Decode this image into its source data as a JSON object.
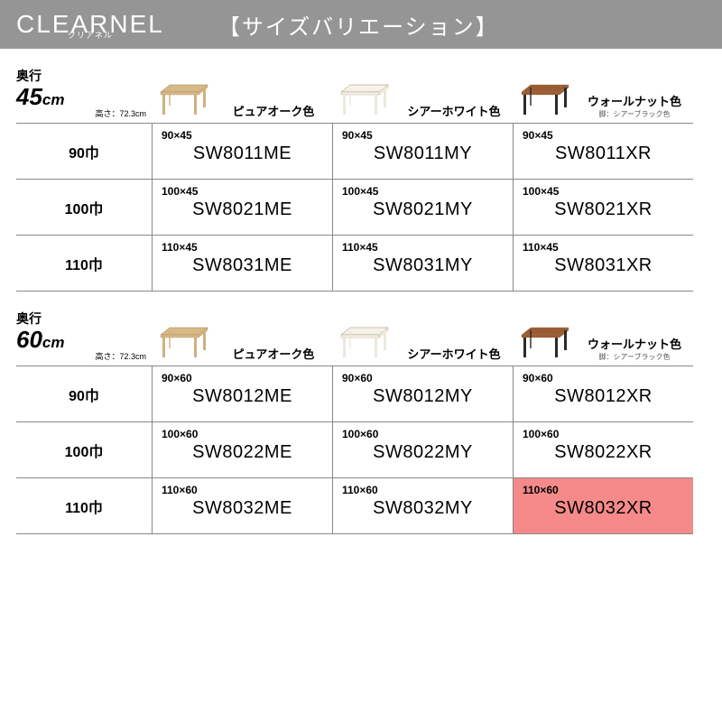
{
  "header": {
    "brand": "CLEARNEL",
    "brand_sub": "クリアネル",
    "title": "【サイズバリエーション】"
  },
  "colors": {
    "header_bg": "#959595",
    "highlight_bg": "#f68a8a",
    "oak_top": "#d8b988",
    "oak_leg": "#d0b080",
    "white_top": "#f5f2ec",
    "white_leg": "#ece8df",
    "walnut_top": "#9a5a34",
    "walnut_leg": "#2a2a2a"
  },
  "sections": [
    {
      "depth_label": "奥行",
      "depth_value": "45",
      "depth_unit": "cm",
      "height_note": "高さ：72.3cm",
      "color_headers": [
        {
          "name": "ピュアオーク色",
          "sub": "",
          "top": "#d8b988",
          "leg": "#d0b080"
        },
        {
          "name": "シアーホワイト色",
          "sub": "",
          "top": "#f5f2ec",
          "leg": "#ece8df"
        },
        {
          "name": "ウォールナット色",
          "sub": "脚：シアーブラック色",
          "top": "#9a5a34",
          "leg": "#2a2a2a"
        }
      ],
      "rows": [
        {
          "label": "90巾",
          "cells": [
            {
              "size": "90×45",
              "code": "SW8011ME"
            },
            {
              "size": "90×45",
              "code": "SW8011MY"
            },
            {
              "size": "90×45",
              "code": "SW8011XR"
            }
          ]
        },
        {
          "label": "100巾",
          "cells": [
            {
              "size": "100×45",
              "code": "SW8021ME"
            },
            {
              "size": "100×45",
              "code": "SW8021MY"
            },
            {
              "size": "100×45",
              "code": "SW8021XR"
            }
          ]
        },
        {
          "label": "110巾",
          "cells": [
            {
              "size": "110×45",
              "code": "SW8031ME"
            },
            {
              "size": "110×45",
              "code": "SW8031MY"
            },
            {
              "size": "110×45",
              "code": "SW8031XR"
            }
          ]
        }
      ]
    },
    {
      "depth_label": "奥行",
      "depth_value": "60",
      "depth_unit": "cm",
      "height_note": "高さ：72.3cm",
      "color_headers": [
        {
          "name": "ピュアオーク色",
          "sub": "",
          "top": "#d8b988",
          "leg": "#d0b080"
        },
        {
          "name": "シアーホワイト色",
          "sub": "",
          "top": "#f5f2ec",
          "leg": "#ece8df"
        },
        {
          "name": "ウォールナット色",
          "sub": "脚：シアーブラック色",
          "top": "#9a5a34",
          "leg": "#2a2a2a"
        }
      ],
      "rows": [
        {
          "label": "90巾",
          "cells": [
            {
              "size": "90×60",
              "code": "SW8012ME"
            },
            {
              "size": "90×60",
              "code": "SW8012MY"
            },
            {
              "size": "90×60",
              "code": "SW8012XR"
            }
          ]
        },
        {
          "label": "100巾",
          "cells": [
            {
              "size": "100×60",
              "code": "SW8022ME"
            },
            {
              "size": "100×60",
              "code": "SW8022MY"
            },
            {
              "size": "100×60",
              "code": "SW8022XR"
            }
          ]
        },
        {
          "label": "110巾",
          "cells": [
            {
              "size": "110×60",
              "code": "SW8032ME"
            },
            {
              "size": "110×60",
              "code": "SW8032MY"
            },
            {
              "size": "110×60",
              "code": "SW8032XR",
              "highlight": true
            }
          ]
        }
      ]
    }
  ]
}
